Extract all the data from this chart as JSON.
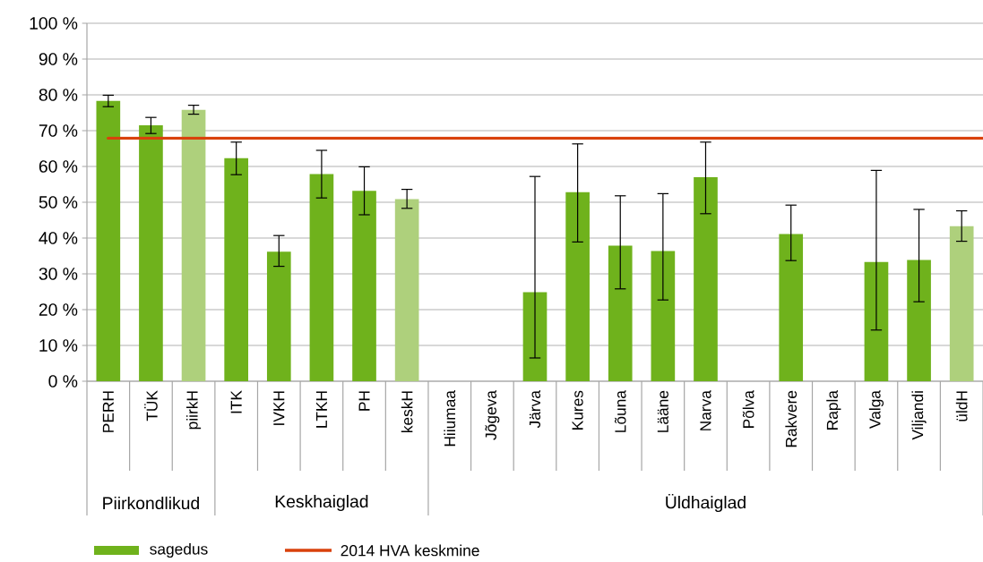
{
  "chart_data": {
    "type": "bar",
    "categories": [
      "PERH",
      "TÜK",
      "piirkH",
      "ITK",
      "IVKH",
      "LTKH",
      "PH",
      "keskH",
      "Hiiumaa",
      "Jõgeva",
      "Järva",
      "Kures",
      "Lõuna",
      "Lääne",
      "Narva",
      "Põlva",
      "Rakvere",
      "Rapla",
      "Valga",
      "Viljandi",
      "üldH"
    ],
    "series": [
      {
        "name": "sagedus",
        "color": "#6fb21c",
        "colors": [
          "#6fb21c",
          "#6fb21c",
          "#aed07c",
          "#6fb21c",
          "#6fb21c",
          "#6fb21c",
          "#6fb21c",
          "#aed07c",
          "#6fb21c",
          "#6fb21c",
          "#6fb21c",
          "#6fb21c",
          "#6fb21c",
          "#6fb21c",
          "#6fb21c",
          "#6fb21c",
          "#6fb21c",
          "#6fb21c",
          "#6fb21c",
          "#6fb21c",
          "#aed07c"
        ],
        "values": [
          78.3,
          71.5,
          75.8,
          62.3,
          36.2,
          57.9,
          53.2,
          50.9,
          0,
          0,
          24.9,
          52.8,
          37.9,
          36.4,
          57.0,
          0,
          41.1,
          0,
          33.3,
          33.9,
          43.3
        ],
        "errors": [
          [
            76.7,
            79.9
          ],
          [
            69.2,
            73.7
          ],
          [
            74.6,
            77.1
          ],
          [
            57.7,
            66.8
          ],
          [
            32.1,
            40.7
          ],
          [
            51.2,
            64.5
          ],
          [
            46.5,
            59.9
          ],
          [
            48.3,
            53.6
          ],
          null,
          null,
          [
            6.5,
            57.2
          ],
          [
            38.9,
            66.3
          ],
          [
            25.8,
            51.8
          ],
          [
            22.7,
            52.4
          ],
          [
            46.8,
            66.8
          ],
          null,
          [
            33.7,
            49.2
          ],
          null,
          [
            14.3,
            58.9
          ],
          [
            22.2,
            48.0
          ],
          [
            39.1,
            47.6
          ]
        ]
      }
    ],
    "ref_lines": [
      {
        "axis": "y",
        "value": 67.9,
        "label": "2014 HVA keskmine",
        "color": "#d9410c"
      }
    ],
    "annotations": [
      "Piirkondlikud",
      "Keskhaiglad",
      "Üldhaiglad"
    ],
    "ylim": [
      0,
      100
    ],
    "yticks": [
      {
        "value": 0,
        "label": "0 %"
      },
      {
        "value": 10,
        "label": "10 %"
      },
      {
        "value": 20,
        "label": "20 %"
      },
      {
        "value": 30,
        "label": "30 %"
      },
      {
        "value": 40,
        "label": "40 %"
      },
      {
        "value": 50,
        "label": "50 %"
      },
      {
        "value": 60,
        "label": "60 %"
      },
      {
        "value": 70,
        "label": "70 %"
      },
      {
        "value": 80,
        "label": "80 %"
      },
      {
        "value": 90,
        "label": "90 %"
      },
      {
        "value": 100,
        "label": "100 %"
      }
    ],
    "grid": "y",
    "legend": "bottom"
  }
}
